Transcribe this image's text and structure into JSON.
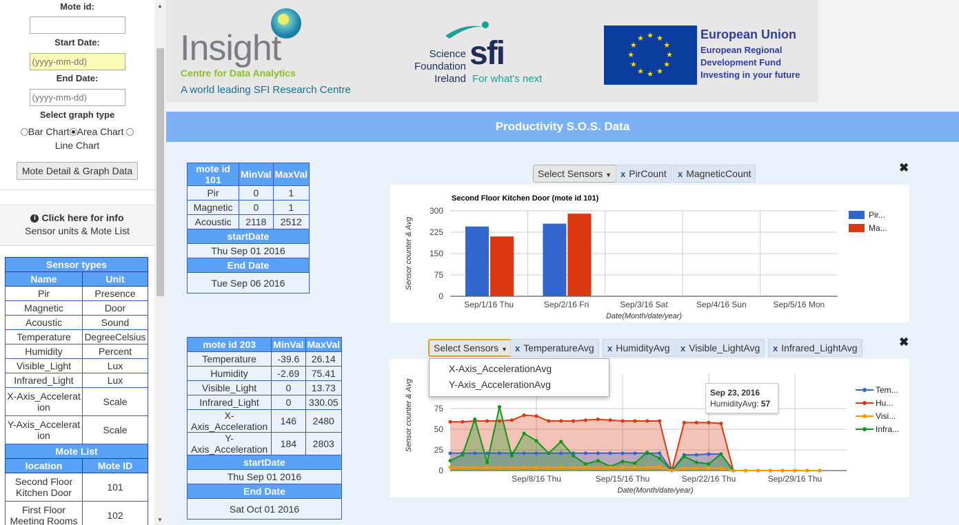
{
  "sidebar": {
    "mote_id_label": "Mote id:",
    "start_date_label": "Start Date:",
    "start_placeholder": "(yyyy-mm-dd)",
    "end_date_label": "End Date:",
    "end_placeholder": "(yyyy-mm-dd)",
    "graph_type_label": "Select graph type",
    "graph_types": [
      "Bar Chart",
      "Area Chart",
      "Line Chart"
    ],
    "selected_graph": "Area Chart",
    "detail_button": "Mote Detail & Graph Data",
    "info_title": "Click here for info",
    "info_sub": "Sensor units & Mote List",
    "sensor_types_title": "Sensor types",
    "col_name": "Name",
    "col_unit": "Unit",
    "sensors": [
      [
        "Pir",
        "Presence"
      ],
      [
        "Magnetic",
        "Door"
      ],
      [
        "Acoustic",
        "Sound"
      ],
      [
        "Temperature",
        "DegreeCelsius"
      ],
      [
        "Humidity",
        "Percent"
      ],
      [
        "Visible_Light",
        "Lux"
      ],
      [
        "Infrared_Light",
        "Lux"
      ]
    ],
    "sensor_x_name": "X-Axis_Acceleration",
    "sensor_x_unit": "Scale",
    "sensor_y_name": "Y-Axis_Acceleration",
    "sensor_y_unit": "Scale",
    "mote_list_title": "Mote List",
    "col_location": "location",
    "col_mote_id": "Mote ID",
    "motes": [
      [
        "Second Floor Kitchen Door",
        "101"
      ],
      [
        "First Floor Meeting Rooms",
        "102"
      ]
    ]
  },
  "header": {
    "insight_name": "Insight",
    "insight_sub": "Centre for Data Analytics",
    "insight_tag": "A world leading SFI Research Centre",
    "sfi_l1": "Science",
    "sfi_l2": "Foundation",
    "sfi_l3": "Ireland",
    "sfi_logo": "sfi",
    "sfi_tag": "For what's next",
    "eu_title": "European Union",
    "eu_l1": "European Regional",
    "eu_l2": "Development Fund",
    "eu_l3": "Investing in your future"
  },
  "page_title": "Productivity S.O.S. Data",
  "mote1": {
    "title": "mote id 101",
    "min": "MinVal",
    "max": "MaxVal",
    "rows": [
      [
        "Pir",
        "0",
        "1"
      ],
      [
        "Magnetic",
        "0",
        "1"
      ],
      [
        "Acoustic",
        "2118",
        "2512"
      ]
    ],
    "start_label": "startDate",
    "start": "Thu Sep 01 2016",
    "end_label": "End Date",
    "end": "Tue Sep 06 2016"
  },
  "mote2": {
    "title": "mote id 203",
    "min": "MinVal",
    "max": "MaxVal",
    "rows": [
      [
        "Temperature",
        "-39.6",
        "26.14"
      ],
      [
        "Humidity",
        "-2.69",
        "75.41"
      ],
      [
        "Visible_Light",
        "0",
        "13.73"
      ],
      [
        "Infrared_Light",
        "0",
        "330.05"
      ],
      [
        "X-Axis_Acceleration",
        "146",
        "2480"
      ],
      [
        "Y-Axis_Acceleration",
        "184",
        "2803"
      ]
    ],
    "start_label": "startDate",
    "start": "Thu Sep 01 2016",
    "end_label": "End Date",
    "end": "Sat Oct 01 2016"
  },
  "panel1": {
    "select_label": "Select Sensors",
    "chips": [
      "PirCount",
      "MagneticCount"
    ]
  },
  "panel2": {
    "select_label": "Select Sensors",
    "chips": [
      "TemperatureAvg",
      "HumidityAvg",
      "Visible_LightAvg",
      "Infrared_LightAvg"
    ],
    "dropdown": [
      "X-Axis_AccelerationAvg",
      "Y-Axis_AccelerationAvg"
    ],
    "tooltip_date": "Sep 23, 2016",
    "tooltip_label": "HumidityAvg:",
    "tooltip_value": "57"
  },
  "chart_data": [
    {
      "type": "bar",
      "title": "Second Floor Kitchen Door (mote id 101)",
      "xlabel": "Date(Month/date/year)",
      "ylabel": "Sensor counter & Avg",
      "categories": [
        "Sep/1/16 Thu",
        "Sep/2/16 Fri",
        "Sep/3/16 Sat",
        "Sep/4/16 Sun",
        "Sep/5/16 Mon"
      ],
      "yticks": [
        0,
        75,
        150,
        225,
        300
      ],
      "ylim": [
        0,
        300
      ],
      "series": [
        {
          "name": "Pir...",
          "color": "#3366cc",
          "values": [
            245,
            255,
            0,
            0,
            0
          ]
        },
        {
          "name": "Ma...",
          "color": "#dc3912",
          "values": [
            210,
            290,
            0,
            0,
            0
          ]
        }
      ],
      "grid": true,
      "legend": "right"
    },
    {
      "type": "area",
      "title": "",
      "xlabel": "Date(Month/date/year)",
      "ylabel": "Sensor counter & Avg",
      "xticks": [
        "Sep/8/16 Thu",
        "Sep/15/16 Thu",
        "Sep/22/16 Thu",
        "Sep/29/16 Thu"
      ],
      "yticks": [
        0,
        25,
        50,
        75
      ],
      "ylim": [
        0,
        100
      ],
      "x": [
        "2016-09-01",
        "2016-09-02",
        "2016-09-03",
        "2016-09-04",
        "2016-09-05",
        "2016-09-06",
        "2016-09-07",
        "2016-09-08",
        "2016-09-09",
        "2016-09-10",
        "2016-09-11",
        "2016-09-12",
        "2016-09-13",
        "2016-09-14",
        "2016-09-15",
        "2016-09-16",
        "2016-09-17",
        "2016-09-18",
        "2016-09-19",
        "2016-09-20",
        "2016-09-21",
        "2016-09-22",
        "2016-09-23",
        "2016-09-24",
        "2016-09-25",
        "2016-09-26",
        "2016-09-27",
        "2016-09-28",
        "2016-09-29",
        "2016-09-30",
        "2016-10-01"
      ],
      "series": [
        {
          "name": "Tem...",
          "color": "#3366cc",
          "values": [
            21,
            21,
            21,
            21,
            21,
            21,
            21,
            21,
            21,
            21,
            21,
            21,
            21,
            21,
            21,
            21,
            21,
            21,
            0,
            19,
            19,
            20,
            20,
            0,
            0,
            0,
            0,
            0,
            0,
            0,
            0
          ]
        },
        {
          "name": "Hu...",
          "color": "#dc3912",
          "values": [
            59,
            59,
            60,
            60,
            60,
            61,
            67,
            66,
            60,
            60,
            60,
            61,
            62,
            61,
            60,
            60,
            60,
            60,
            0,
            58,
            58,
            58,
            57,
            0,
            0,
            0,
            0,
            0,
            0,
            0,
            0
          ]
        },
        {
          "name": "Visi...",
          "color": "#ff9900",
          "values": [
            4,
            4,
            4,
            4,
            4,
            4,
            4,
            4,
            4,
            4,
            4,
            4,
            4,
            4,
            4,
            4,
            4,
            5,
            0,
            3,
            3,
            3,
            3,
            0,
            0,
            0,
            0,
            0,
            0,
            0,
            0
          ]
        },
        {
          "name": "Infra...",
          "color": "#109618",
          "values": [
            12,
            19,
            62,
            10,
            77,
            18,
            45,
            36,
            21,
            35,
            18,
            8,
            12,
            5,
            11,
            9,
            22,
            15,
            0,
            17,
            10,
            8,
            20,
            0,
            0,
            0,
            0,
            0,
            0,
            0,
            0
          ]
        }
      ],
      "grid": true,
      "legend": "right"
    }
  ]
}
